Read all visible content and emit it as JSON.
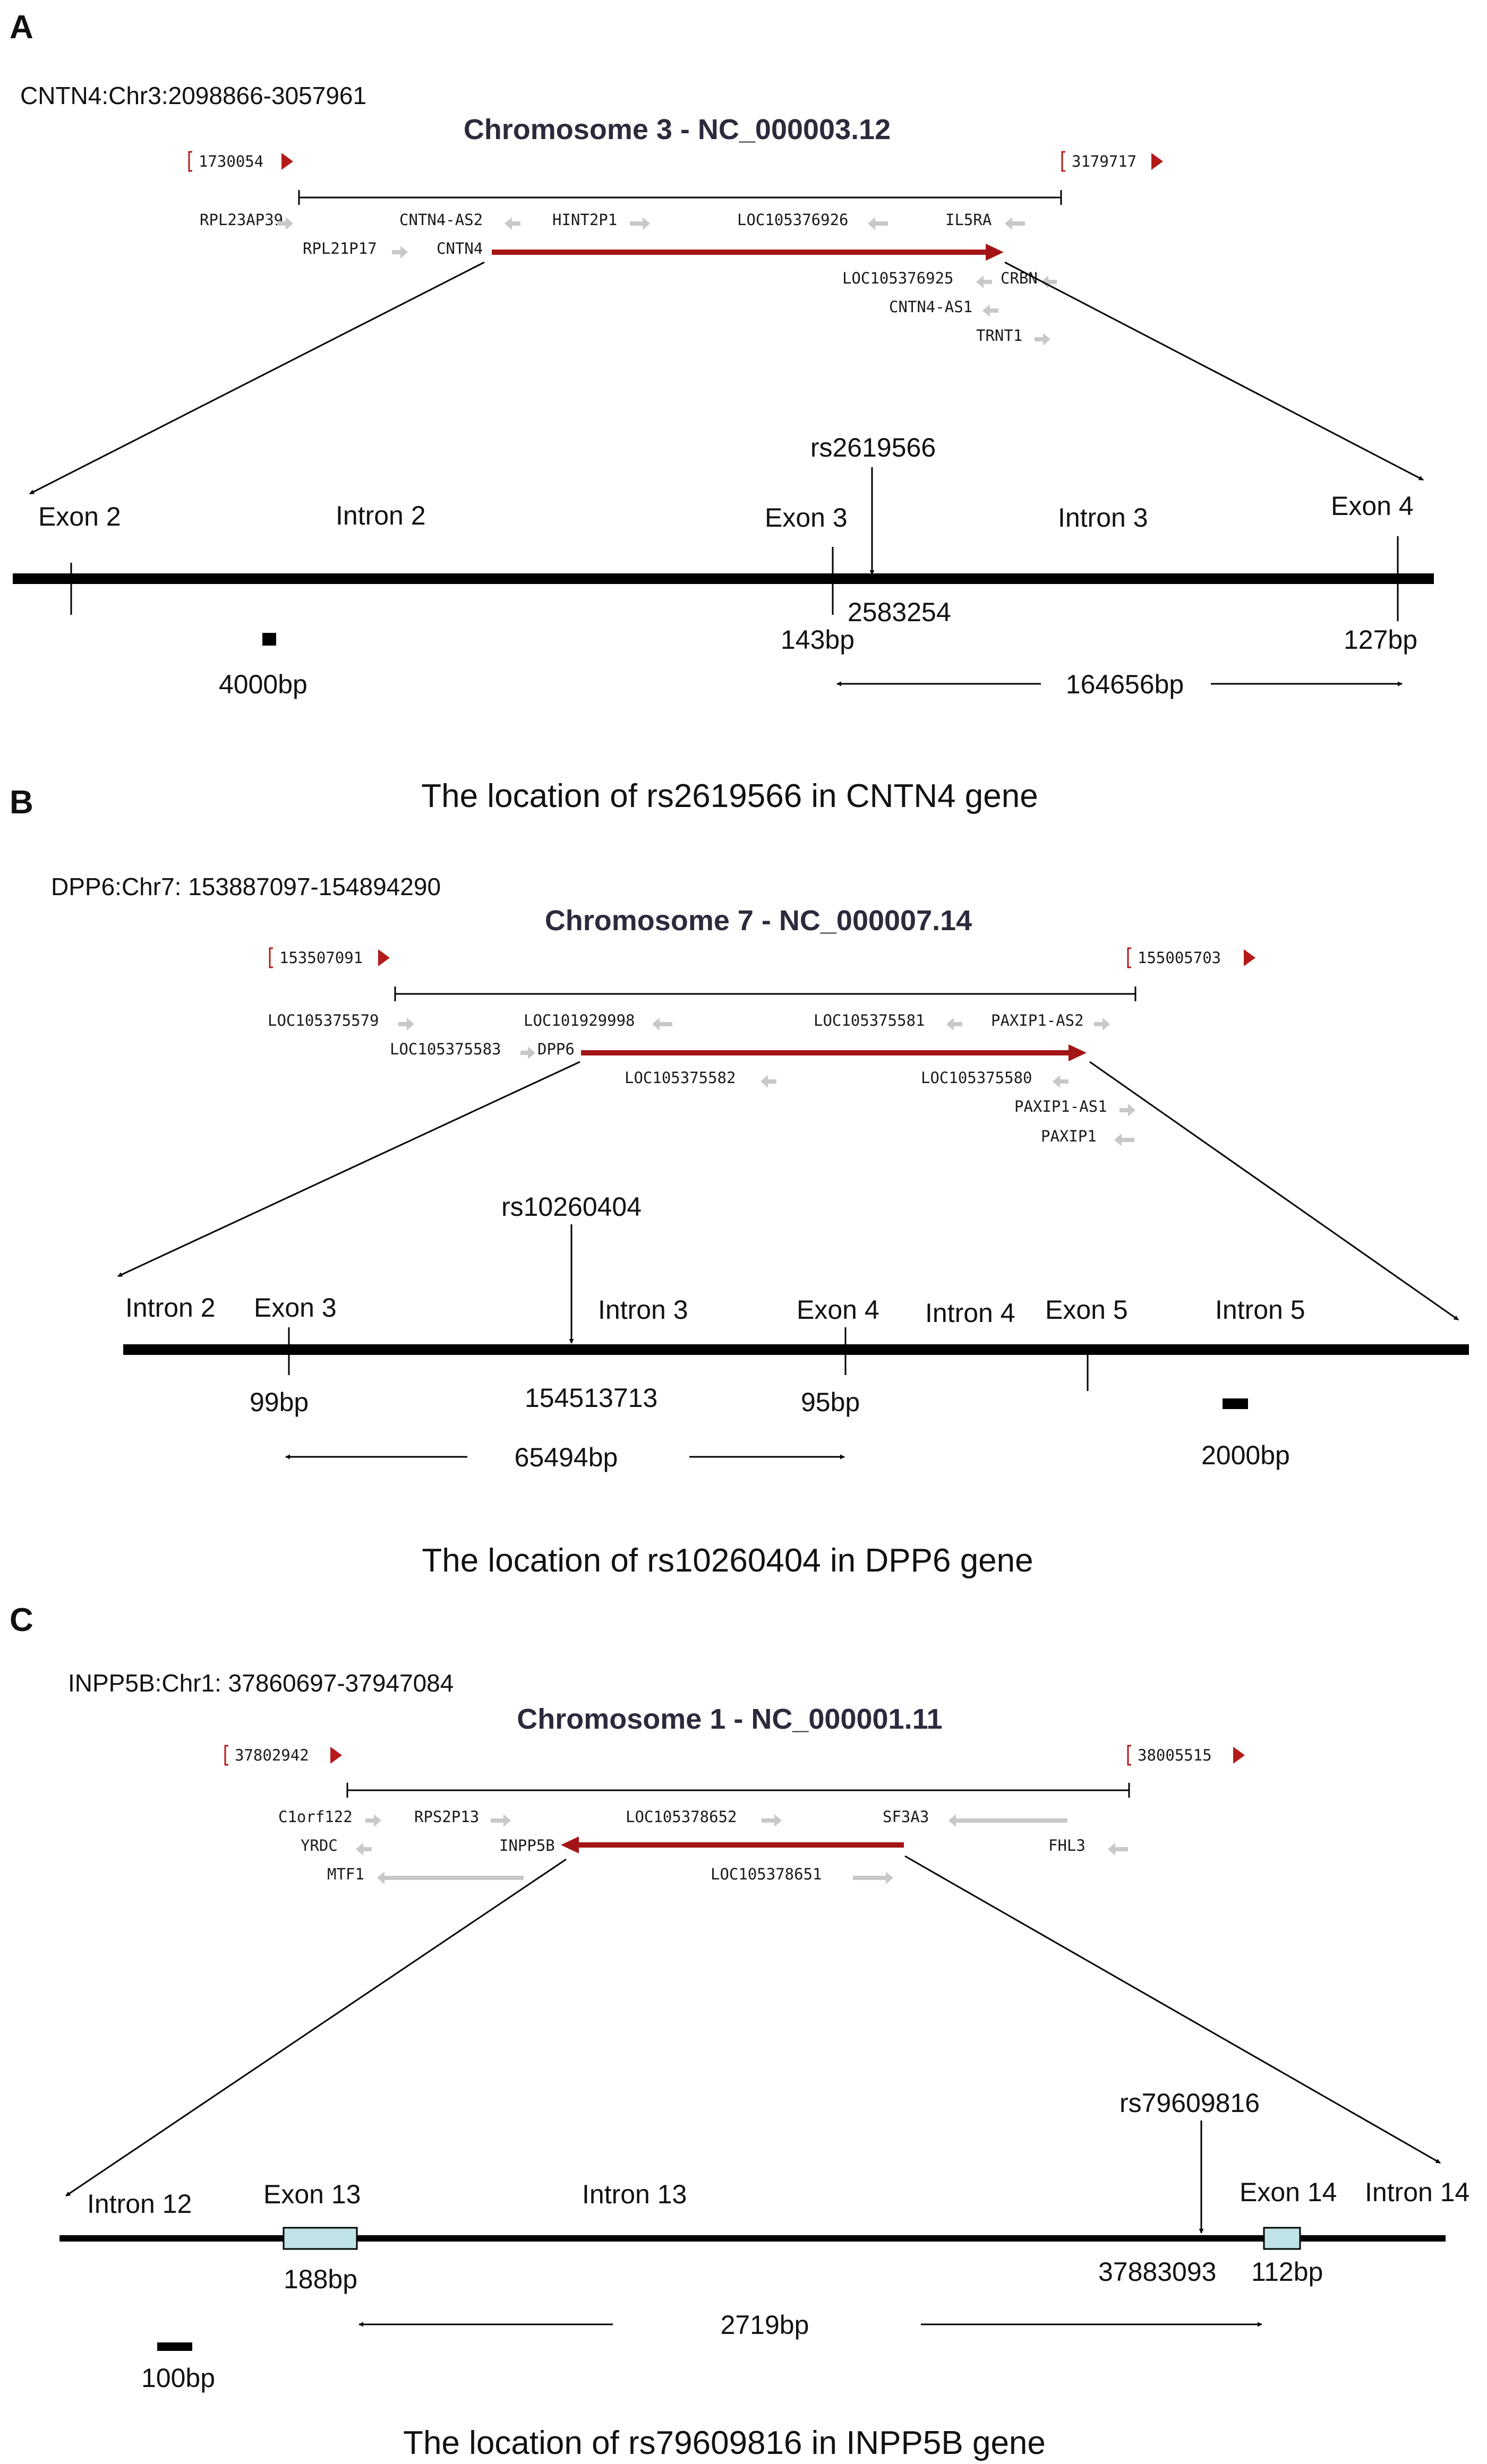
{
  "colors": {
    "gene_arrow": "#a31515",
    "neighbor_arrow": "#c8c8c8",
    "marker": "#b51a1a",
    "exon_box": "#bfe3e6",
    "line": "#000000"
  },
  "panels": [
    {
      "letter": "A",
      "locus": "CNTN4:Chr3:2098866-3057961",
      "chromosome_title": "Chromosome 3 - NC_000003.12",
      "left_coord": "1730054",
      "right_coord": "3179717",
      "genes": [
        {
          "name": "RPL23AP39",
          "dir": "right"
        },
        {
          "name": "CNTN4-AS2",
          "dir": "left"
        },
        {
          "name": "HINT2P1",
          "dir": "right"
        },
        {
          "name": "LOC105376926",
          "dir": "left"
        },
        {
          "name": "IL5RA",
          "dir": "left"
        },
        {
          "name": "RPL21P17",
          "dir": "right"
        },
        {
          "name": "CNTN4",
          "dir": "right",
          "main": true
        },
        {
          "name": "LOC105376925",
          "dir": "left"
        },
        {
          "name": "CRBN",
          "dir": "left"
        },
        {
          "name": "CNTN4-AS1",
          "dir": "left"
        },
        {
          "name": "TRNT1",
          "dir": "right"
        }
      ],
      "region_labels": [
        "Exon 2",
        "Intron 2",
        "Exon 3",
        "Intron 3",
        "Exon 4"
      ],
      "snp": {
        "id": "rs2619566",
        "position": "2583254"
      },
      "sizes": [
        "143bp",
        "127bp"
      ],
      "span": "164656bp",
      "scale": "4000bp",
      "caption": "The location of rs2619566 in CNTN4 gene"
    },
    {
      "letter": "B",
      "locus": "DPP6:Chr7: 153887097-154894290",
      "chromosome_title": "Chromosome 7 - NC_000007.14",
      "left_coord": "153507091",
      "right_coord": "155005703",
      "genes": [
        {
          "name": "LOC105375579",
          "dir": "right"
        },
        {
          "name": "LOC101929998",
          "dir": "left"
        },
        {
          "name": "LOC105375581",
          "dir": "left"
        },
        {
          "name": "PAXIP1-AS2",
          "dir": "right"
        },
        {
          "name": "LOC105375583",
          "dir": "right"
        },
        {
          "name": "DPP6",
          "dir": "right",
          "main": true
        },
        {
          "name": "LOC105375582",
          "dir": "left"
        },
        {
          "name": "LOC105375580",
          "dir": "left"
        },
        {
          "name": "PAXIP1-AS1",
          "dir": "right"
        },
        {
          "name": "PAXIP1",
          "dir": "left"
        }
      ],
      "region_labels": [
        "Intron 2",
        "Exon 3",
        "Intron 3",
        "Exon 4",
        "Intron 4",
        "Exon 5",
        "Intron 5"
      ],
      "snp": {
        "id": "rs10260404",
        "position": "154513713"
      },
      "sizes": [
        "99bp",
        "95bp"
      ],
      "span": "65494bp",
      "scale": "2000bp",
      "caption": "The location of rs10260404 in DPP6 gene"
    },
    {
      "letter": "C",
      "locus": "INPP5B:Chr1: 37860697-37947084",
      "chromosome_title": "Chromosome 1 - NC_000001.11",
      "left_coord": "37802942",
      "right_coord": "38005515",
      "genes": [
        {
          "name": "C1orf122",
          "dir": "right"
        },
        {
          "name": "RPS2P13",
          "dir": "right"
        },
        {
          "name": "LOC105378652",
          "dir": "right"
        },
        {
          "name": "SF3A3",
          "dir": "left"
        },
        {
          "name": "YRDC",
          "dir": "left"
        },
        {
          "name": "INPP5B",
          "dir": "left",
          "main": true
        },
        {
          "name": "FHL3",
          "dir": "left"
        },
        {
          "name": "MTF1",
          "dir": "left"
        },
        {
          "name": "LOC105378651",
          "dir": "right"
        }
      ],
      "region_labels": [
        "Intron 12",
        "Exon 13",
        "Intron 13",
        "Exon 14",
        "Intron 14"
      ],
      "snp": {
        "id": "rs79609816",
        "position": "37883093"
      },
      "sizes": [
        "188bp",
        "112bp"
      ],
      "span": "2719bp",
      "scale": "100bp",
      "caption": "The location of rs79609816  in INPP5B gene"
    }
  ]
}
